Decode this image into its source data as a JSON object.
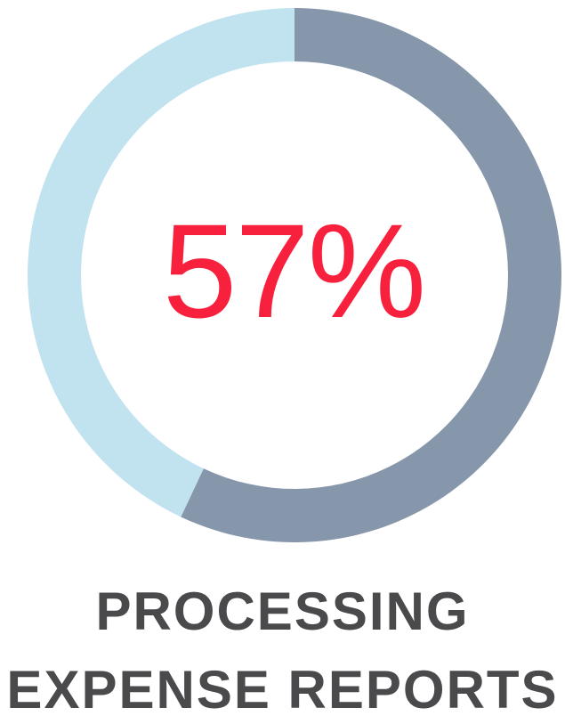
{
  "chart_data": {
    "type": "pie",
    "variant": "donut",
    "slices": [
      {
        "value": 57,
        "color": "#8696ab"
      },
      {
        "value": 43,
        "color": "#c0e3ef"
      }
    ],
    "center_label": "57%",
    "caption": [
      "PROCESSING",
      "EXPENSE REPORTS"
    ]
  },
  "colors": {
    "accent_text": "#f8213d",
    "caption_text": "#4a4a4d"
  }
}
